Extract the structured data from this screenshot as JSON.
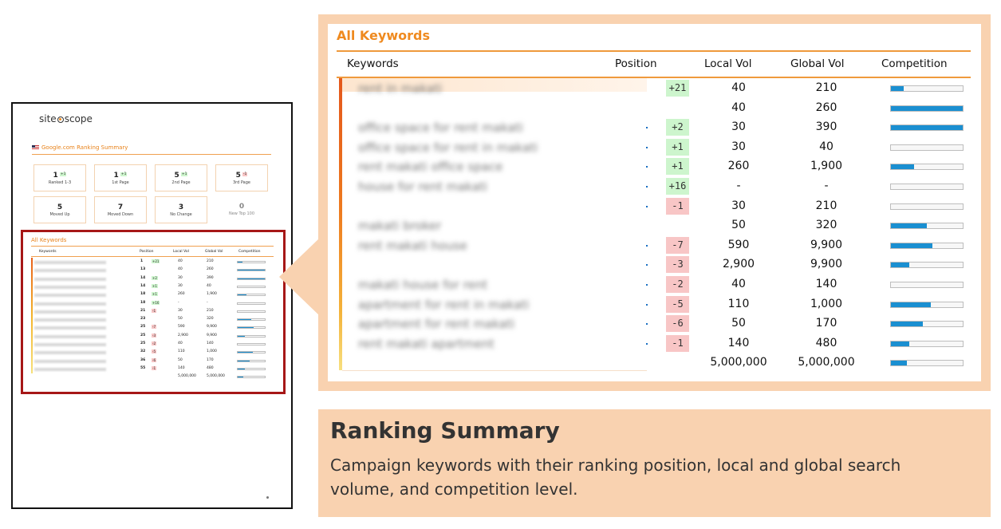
{
  "brand": {
    "logo_text_a": "site",
    "logo_text_b": "scope"
  },
  "thumbnail": {
    "summary_title": "Google.com Ranking Summary",
    "cards": [
      {
        "num": "1",
        "chg": "+1",
        "chg_type": "g",
        "label": "Ranked 1-3"
      },
      {
        "num": "1",
        "chg": "+1",
        "chg_type": "g",
        "label": "1st Page"
      },
      {
        "num": "5",
        "chg": "+1",
        "chg_type": "g",
        "label": "2nd Page"
      },
      {
        "num": "5",
        "chg": "-1",
        "chg_type": "r",
        "label": "3rd Page"
      },
      {
        "num": "5",
        "chg": "",
        "chg_type": "",
        "label": "Moved Up"
      },
      {
        "num": "7",
        "chg": "",
        "chg_type": "",
        "label": "Moved Down"
      },
      {
        "num": "3",
        "chg": "",
        "chg_type": "",
        "label": "No Change"
      },
      {
        "num": "0",
        "chg": "",
        "chg_type": "",
        "label": "New Top 100"
      }
    ],
    "table_title": "All Keywords",
    "headers": {
      "keywords": "Keywords",
      "position": "Position",
      "local": "Local Vol",
      "global": "Global Vol",
      "competition": "Competition"
    },
    "rows": [
      {
        "pos": "1",
        "chg": "+21",
        "chg_type": "g",
        "lv": "40",
        "gv": "210",
        "comp": 0.18
      },
      {
        "pos": "13",
        "chg": "",
        "chg_type": "",
        "lv": "40",
        "gv": "260",
        "comp": 1.0
      },
      {
        "pos": "14",
        "chg": "+2",
        "chg_type": "g",
        "lv": "30",
        "gv": "390",
        "comp": 1.0
      },
      {
        "pos": "14",
        "chg": "+1",
        "chg_type": "g",
        "lv": "30",
        "gv": "40",
        "comp": 0.0
      },
      {
        "pos": "18",
        "chg": "+1",
        "chg_type": "g",
        "lv": "260",
        "gv": "1,900",
        "comp": 0.32
      },
      {
        "pos": "18",
        "chg": "+16",
        "chg_type": "g",
        "lv": "-",
        "gv": "-",
        "comp": 0.0
      },
      {
        "pos": "21",
        "chg": "-1",
        "chg_type": "r",
        "lv": "30",
        "gv": "210",
        "comp": 0.0
      },
      {
        "pos": "23",
        "chg": "",
        "chg_type": "",
        "lv": "50",
        "gv": "320",
        "comp": 0.5
      },
      {
        "pos": "25",
        "chg": "-7",
        "chg_type": "r",
        "lv": "590",
        "gv": "9,900",
        "comp": 0.58
      },
      {
        "pos": "25",
        "chg": "-3",
        "chg_type": "r",
        "lv": "2,900",
        "gv": "9,900",
        "comp": 0.25
      },
      {
        "pos": "25",
        "chg": "-2",
        "chg_type": "r",
        "lv": "40",
        "gv": "140",
        "comp": 0.0
      },
      {
        "pos": "32",
        "chg": "-5",
        "chg_type": "r",
        "lv": "110",
        "gv": "1,000",
        "comp": 0.55
      },
      {
        "pos": "36",
        "chg": "-6",
        "chg_type": "r",
        "lv": "50",
        "gv": "170",
        "comp": 0.44
      },
      {
        "pos": "55",
        "chg": "-1",
        "chg_type": "r",
        "lv": "140",
        "gv": "480",
        "comp": 0.26
      },
      {
        "pos": "",
        "chg": "",
        "chg_type": "",
        "lv": "5,000,000",
        "gv": "5,000,000",
        "comp": 0.22
      }
    ]
  },
  "zoom": {
    "title": "All Keywords",
    "headers": {
      "keywords": "Keywords",
      "position": "Position",
      "local": "Local Vol",
      "global": "Global Vol",
      "competition": "Competition"
    },
    "rows": [
      {
        "kw": "rent in makati",
        "chg": "+21",
        "chg_type": "g",
        "lv": "40",
        "gv": "210",
        "comp": 0.18
      },
      {
        "kw": "",
        "chg": "",
        "chg_type": "",
        "lv": "40",
        "gv": "260",
        "comp": 1.0
      },
      {
        "kw": "office space for rent makati",
        "chg": "+2",
        "chg_type": "g",
        "lv": "30",
        "gv": "390",
        "comp": 1.0
      },
      {
        "kw": "office space for rent in makati",
        "chg": "+1",
        "chg_type": "g",
        "lv": "30",
        "gv": "40",
        "comp": 0.0
      },
      {
        "kw": "rent makati office space",
        "chg": "+1",
        "chg_type": "g",
        "lv": "260",
        "gv": "1,900",
        "comp": 0.32
      },
      {
        "kw": "house for rent makati",
        "chg": "+16",
        "chg_type": "g",
        "lv": "-",
        "gv": "-",
        "comp": 0.0
      },
      {
        "kw": "",
        "chg": "-1",
        "chg_type": "r",
        "lv": "30",
        "gv": "210",
        "comp": 0.0
      },
      {
        "kw": "makati broker",
        "chg": "",
        "chg_type": "",
        "lv": "50",
        "gv": "320",
        "comp": 0.5
      },
      {
        "kw": "rent makati house",
        "chg": "-7",
        "chg_type": "r",
        "lv": "590",
        "gv": "9,900",
        "comp": 0.58
      },
      {
        "kw": "",
        "chg": "-3",
        "chg_type": "r",
        "lv": "2,900",
        "gv": "9,900",
        "comp": 0.25
      },
      {
        "kw": "makati house for rent",
        "chg": "-2",
        "chg_type": "r",
        "lv": "40",
        "gv": "140",
        "comp": 0.0
      },
      {
        "kw": "apartment for rent in makati",
        "chg": "-5",
        "chg_type": "r",
        "lv": "110",
        "gv": "1,000",
        "comp": 0.55
      },
      {
        "kw": "apartment for rent makati",
        "chg": "-6",
        "chg_type": "r",
        "lv": "50",
        "gv": "170",
        "comp": 0.44
      },
      {
        "kw": "rent makati apartment",
        "chg": "-1",
        "chg_type": "r",
        "lv": "140",
        "gv": "480",
        "comp": 0.26
      },
      {
        "kw": "",
        "chg": "",
        "chg_type": "",
        "lv": "5,000,000",
        "gv": "5,000,000",
        "comp": 0.22
      }
    ]
  },
  "caption": {
    "heading": "Ranking Summary",
    "text": "Campaign keywords with their ranking position, local and global search volume, and competition level."
  },
  "colors": {
    "accent": "#ef8a1f",
    "bar": "#1a8fd1",
    "panel": "#f9d2b0",
    "frame": "#a61717",
    "up": "#cdf5cd",
    "down": "#f8c6c6"
  }
}
